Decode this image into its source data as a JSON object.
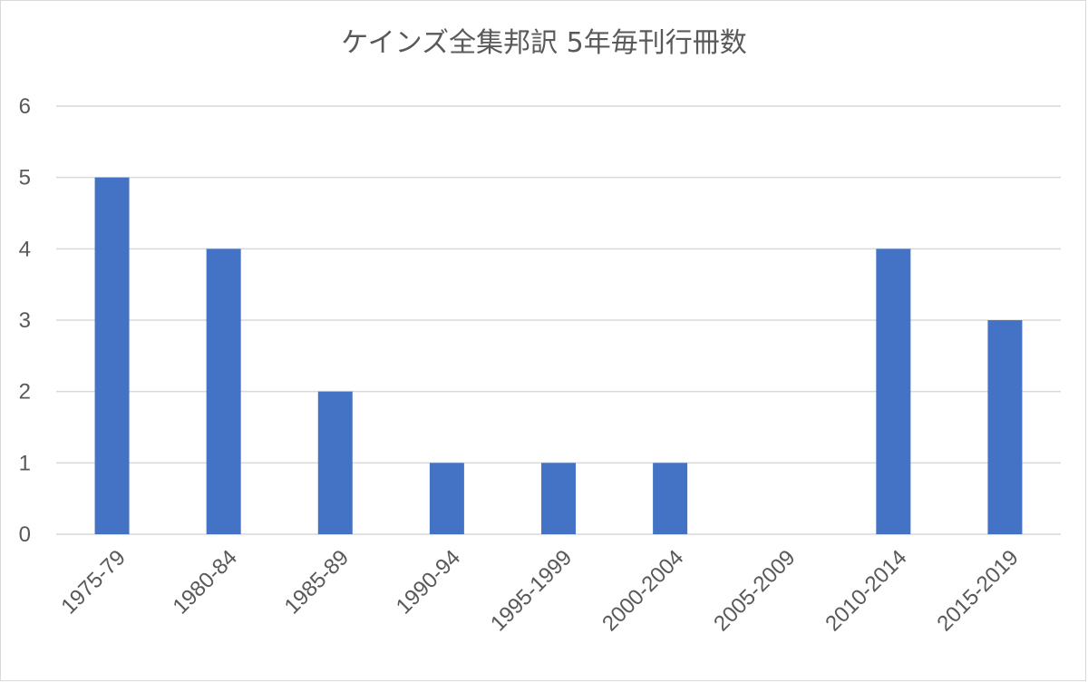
{
  "chart_data": {
    "type": "bar",
    "title": "ケインズ全集邦訳 5年毎刊行冊数",
    "categories": [
      "1975-79",
      "1980-84",
      "1985-89",
      "1990-94",
      "1995-1999",
      "2000-2004",
      "2005-2009",
      "2010-2014",
      "2015-2019"
    ],
    "values": [
      5,
      4,
      2,
      1,
      1,
      1,
      0,
      4,
      3
    ],
    "ylim": [
      0,
      6
    ],
    "yticks": [
      "0",
      "1",
      "2",
      "3",
      "4",
      "5",
      "6"
    ],
    "xlabel": "",
    "ylabel": "",
    "grid": true,
    "legend": "none",
    "bar_color": "#4472c4",
    "grid_color": "#d9d9d9",
    "text_color": "#595959"
  }
}
